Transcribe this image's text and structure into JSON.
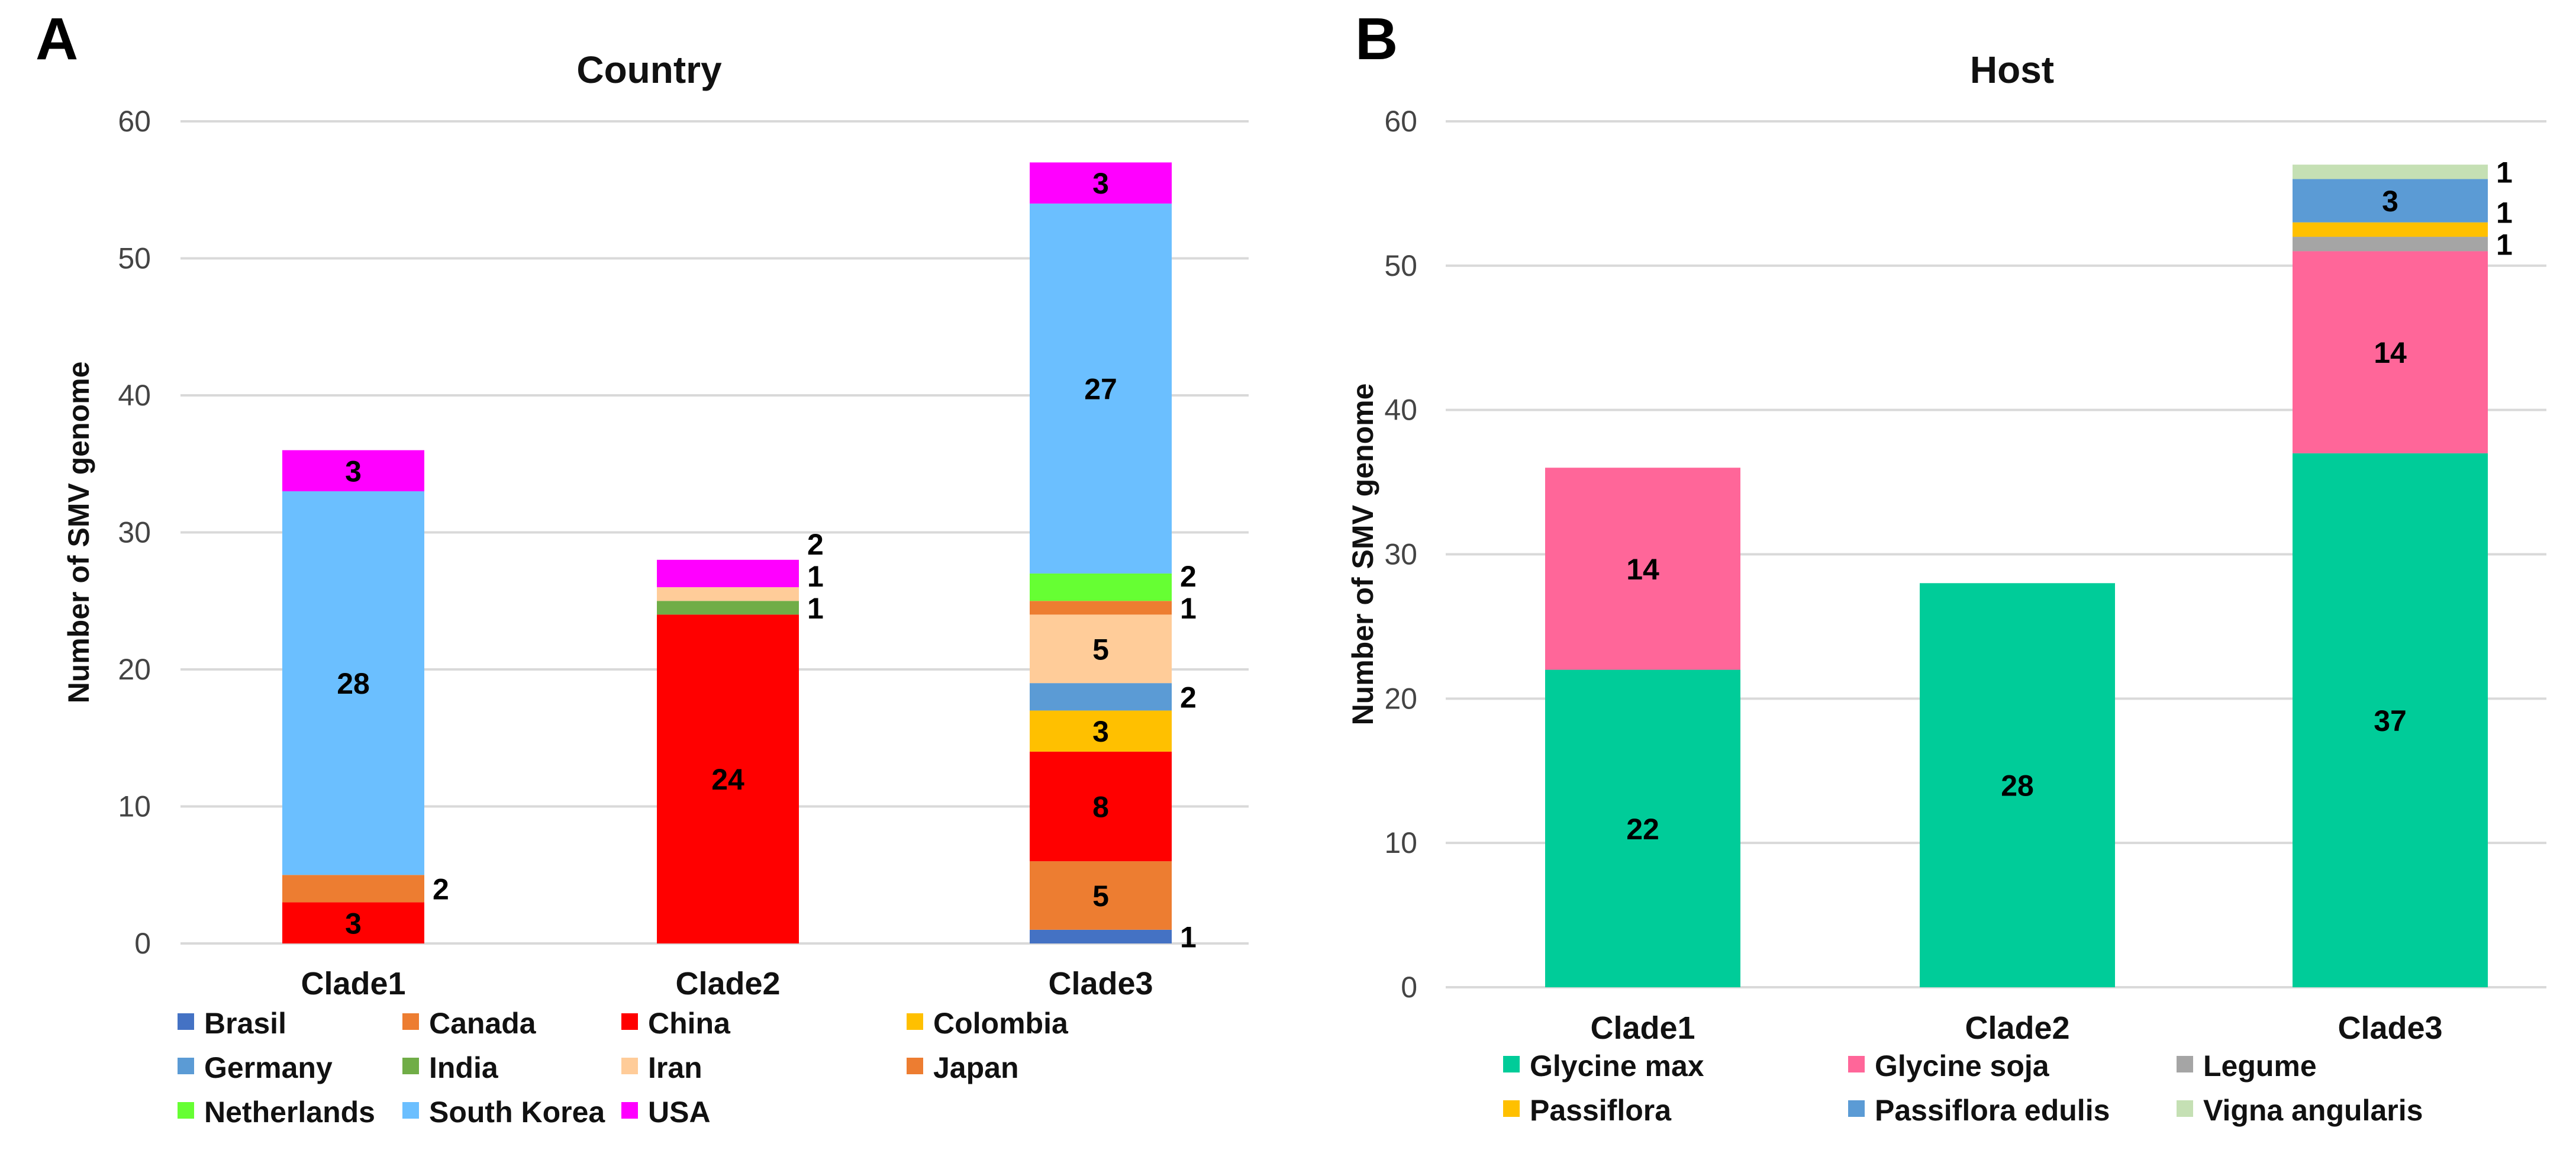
{
  "chart_data": [
    {
      "type": "bar",
      "stacked": true,
      "panel_label": "A",
      "title": "Country",
      "xlabel": "",
      "ylabel": "Number of SMV genome",
      "ylim": [
        0,
        60
      ],
      "yticks": [
        0,
        10,
        20,
        30,
        40,
        50,
        60
      ],
      "grid": true,
      "legend_position": "bottom",
      "categories": [
        "Clade1",
        "Clade2",
        "Clade3"
      ],
      "series": [
        {
          "name": "Brasil",
          "color": "#4472C4",
          "values": [
            0,
            0,
            1
          ]
        },
        {
          "name": "Canada",
          "color": "#ED7D31",
          "values": [
            0,
            0,
            5
          ]
        },
        {
          "name": "China",
          "color": "#FF0000",
          "values": [
            3,
            24,
            8
          ]
        },
        {
          "name": "Colombia",
          "color": "#FFC000",
          "values": [
            0,
            0,
            3
          ]
        },
        {
          "name": "Germany",
          "color": "#5B9BD5",
          "values": [
            0,
            0,
            2
          ]
        },
        {
          "name": "India",
          "color": "#70AD47",
          "values": [
            0,
            1,
            0
          ]
        },
        {
          "name": "Iran",
          "color": "#FFCC99",
          "values": [
            0,
            1,
            5
          ]
        },
        {
          "name": "Japan",
          "color": "#ED7D31",
          "values": [
            2,
            0,
            1
          ]
        },
        {
          "name": "Netherlands",
          "color": "#66FF33",
          "values": [
            0,
            0,
            2
          ]
        },
        {
          "name": "South Korea",
          "color": "#6BBFFF",
          "values": [
            28,
            0,
            27
          ]
        },
        {
          "name": "USA",
          "color": "#FF00FF",
          "values": [
            3,
            2,
            3
          ]
        }
      ]
    },
    {
      "type": "bar",
      "stacked": true,
      "panel_label": "B",
      "title": "Host",
      "xlabel": "",
      "ylabel": "Number of SMV genome",
      "ylim": [
        0,
        60
      ],
      "yticks": [
        0,
        10,
        20,
        30,
        40,
        50,
        60
      ],
      "grid": true,
      "legend_position": "bottom",
      "categories": [
        "Clade1",
        "Clade2",
        "Clade3"
      ],
      "series": [
        {
          "name": "Glycine max",
          "color": "#00CC99",
          "values": [
            22,
            28,
            37
          ]
        },
        {
          "name": "Glycine soja",
          "color": "#FF6699",
          "values": [
            14,
            0,
            14
          ]
        },
        {
          "name": "Legume",
          "color": "#A5A5A5",
          "values": [
            0,
            0,
            1
          ]
        },
        {
          "name": "Passiflora",
          "color": "#FFC000",
          "values": [
            0,
            0,
            1
          ]
        },
        {
          "name": "Passiflora edulis",
          "color": "#5B9BD5",
          "values": [
            0,
            0,
            3
          ]
        },
        {
          "name": "Vigna angularis",
          "color": "#C5E0B4",
          "values": [
            0,
            0,
            1
          ]
        }
      ]
    }
  ]
}
